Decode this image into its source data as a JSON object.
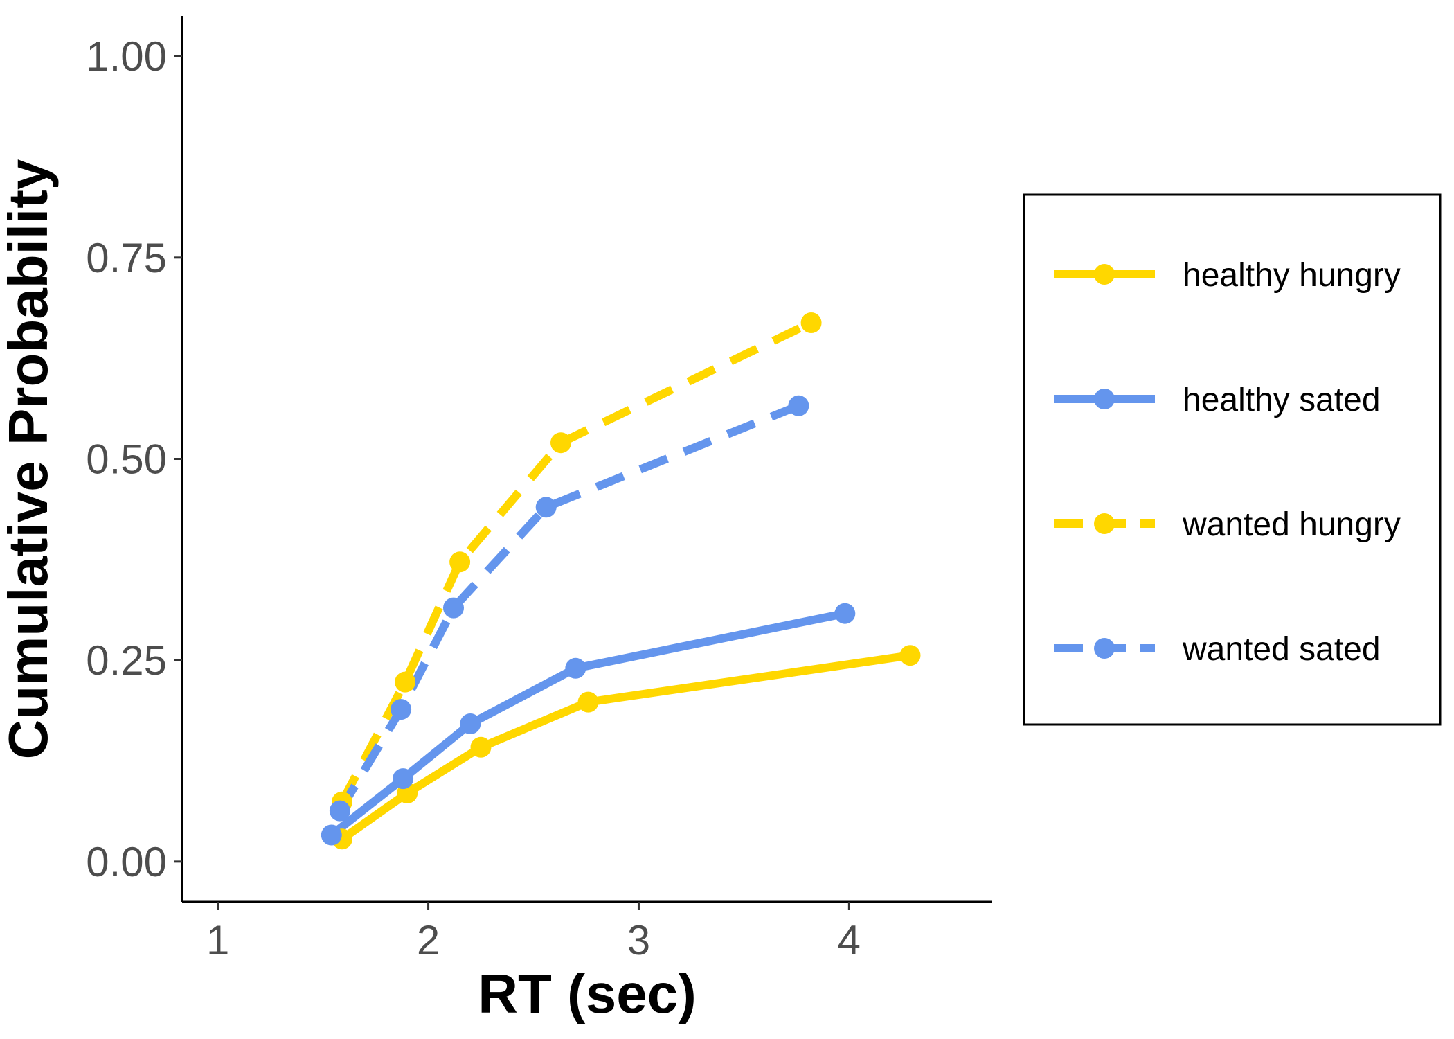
{
  "chart_data": {
    "type": "line",
    "xlabel": "RT (sec)",
    "ylabel": "Cumulative Probability",
    "xlim": [
      0.83,
      4.68
    ],
    "ylim": [
      -0.05,
      1.05
    ],
    "xticks": [
      1,
      2,
      3,
      4
    ],
    "xtick_labels": [
      "1",
      "2",
      "3",
      "4"
    ],
    "yticks": [
      0,
      0.25,
      0.5,
      0.75,
      1
    ],
    "ytick_labels": [
      "0.00",
      "0.25",
      "0.50",
      "0.75",
      "1.00"
    ],
    "grid": false,
    "legend_position": "right",
    "series": [
      {
        "name": "healthy hungry",
        "color": "#FFD700",
        "dash": "solid",
        "x": [
          1.59,
          1.9,
          2.25,
          2.76,
          4.29
        ],
        "y": [
          0.028,
          0.085,
          0.142,
          0.198,
          0.256
        ]
      },
      {
        "name": "healthy sated",
        "color": "#6495ED",
        "dash": "solid",
        "x": [
          1.54,
          1.88,
          2.2,
          2.7,
          3.98
        ],
        "y": [
          0.033,
          0.103,
          0.171,
          0.24,
          0.308
        ]
      },
      {
        "name": "wanted hungry",
        "color": "#FFD700",
        "dash": "dashed",
        "x": [
          1.59,
          1.89,
          2.15,
          2.63,
          3.82
        ],
        "y": [
          0.074,
          0.223,
          0.372,
          0.52,
          0.669
        ]
      },
      {
        "name": "wanted sated",
        "color": "#6495ED",
        "dash": "dashed",
        "x": [
          1.58,
          1.87,
          2.12,
          2.56,
          3.76
        ],
        "y": [
          0.063,
          0.189,
          0.315,
          0.44,
          0.566
        ]
      }
    ]
  }
}
